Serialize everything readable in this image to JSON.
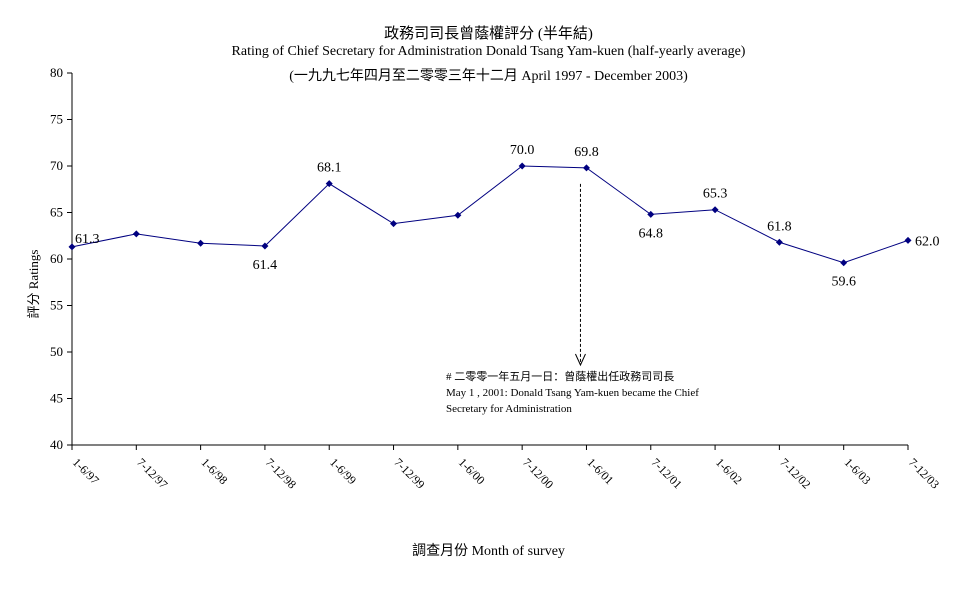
{
  "chart_data": {
    "type": "line",
    "title": "政務司司長曾蔭權評分 (半年結)",
    "subtitle": "Rating of Chief Secretary for Administration Donald Tsang Yam-kuen  (half-yearly average)",
    "subtitle2": "(一九九七年四月至二零零三年十二月 April 1997 - December 2003)",
    "xlabel": "調查月份 Month of survey",
    "ylabel": "評分 Ratings",
    "ylim": [
      40,
      80
    ],
    "yticks": [
      40,
      45,
      50,
      55,
      60,
      65,
      70,
      75,
      80
    ],
    "categories": [
      "1-6/97",
      "7-12/97",
      "1-6/98",
      "7-12/98",
      "1-6/99",
      "7-12/99",
      "1-6/00",
      "7-12/00",
      "1-6/01",
      "7-12/01",
      "1-6/02",
      "7-12/02",
      "1-6/03",
      "7-12/03"
    ],
    "values": [
      61.3,
      62.7,
      61.7,
      61.4,
      68.1,
      63.8,
      64.7,
      70.0,
      69.8,
      64.8,
      65.3,
      61.8,
      59.6,
      62.0
    ],
    "data_labels": [
      {
        "index": 0,
        "text": "61.3"
      },
      {
        "index": 3,
        "text": "61.4"
      },
      {
        "index": 4,
        "text": "68.1"
      },
      {
        "index": 7,
        "text": "70.0"
      },
      {
        "index": 8,
        "text": "69.8"
      },
      {
        "index": 9,
        "text": "64.8"
      },
      {
        "index": 10,
        "text": "65.3"
      },
      {
        "index": 11,
        "text": "61.8"
      },
      {
        "index": 12,
        "text": "59.6"
      },
      {
        "index": 13,
        "text": "62.0"
      }
    ],
    "annotation": {
      "index": 8,
      "line1": "# 二零零一年五月一日：曾蔭權出任政務司司長",
      "line2": "May 1 , 2001: Donald Tsang Yam-kuen became the Chief",
      "line3": "Secretary for Administration"
    },
    "colors": {
      "line": "#000080",
      "marker": "#000080",
      "axis": "#000000"
    },
    "grid": false,
    "legend": "none"
  }
}
